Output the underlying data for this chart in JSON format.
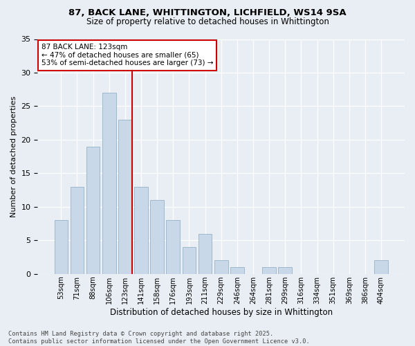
{
  "title1": "87, BACK LANE, WHITTINGTON, LICHFIELD, WS14 9SA",
  "title2": "Size of property relative to detached houses in Whittington",
  "xlabel": "Distribution of detached houses by size in Whittington",
  "ylabel": "Number of detached properties",
  "categories": [
    "53sqm",
    "71sqm",
    "88sqm",
    "106sqm",
    "123sqm",
    "141sqm",
    "158sqm",
    "176sqm",
    "193sqm",
    "211sqm",
    "229sqm",
    "246sqm",
    "264sqm",
    "281sqm",
    "299sqm",
    "316sqm",
    "334sqm",
    "351sqm",
    "369sqm",
    "386sqm",
    "404sqm"
  ],
  "values": [
    8,
    13,
    19,
    27,
    23,
    13,
    11,
    8,
    4,
    6,
    2,
    1,
    0,
    1,
    1,
    0,
    0,
    0,
    0,
    0,
    2
  ],
  "bar_color": "#c8d8e8",
  "bar_edge_color": "#a0b8cc",
  "highlight_line_index": 4,
  "annotation_text": "87 BACK LANE: 123sqm\n← 47% of detached houses are smaller (65)\n53% of semi-detached houses are larger (73) →",
  "annotation_box_color": "#ffffff",
  "annotation_box_edge": "#cc0000",
  "line_color": "#cc0000",
  "ylim": [
    0,
    35
  ],
  "yticks": [
    0,
    5,
    10,
    15,
    20,
    25,
    30,
    35
  ],
  "footer": "Contains HM Land Registry data © Crown copyright and database right 2025.\nContains public sector information licensed under the Open Government Licence v3.0.",
  "bg_color": "#e8eef4",
  "plot_bg_color": "#e8eef4"
}
